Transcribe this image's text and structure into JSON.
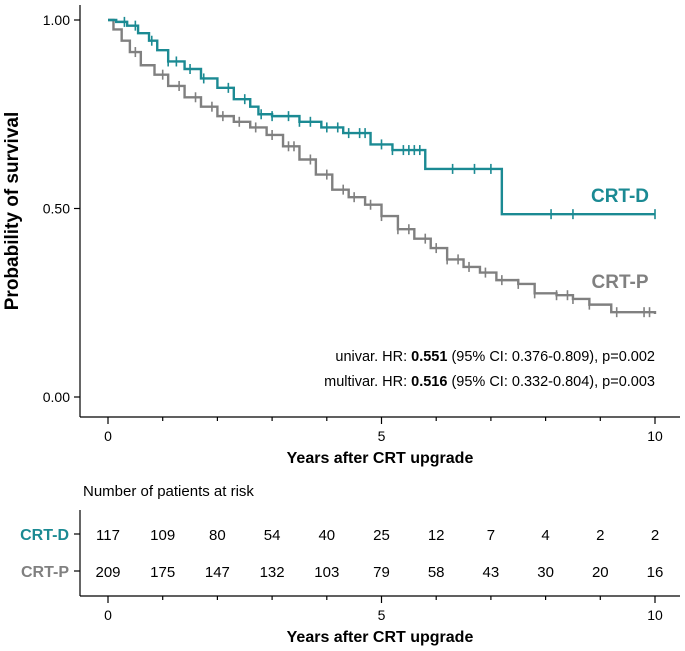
{
  "chart_data": {
    "type": "line",
    "subtype": "kaplan-meier",
    "title": "",
    "xlabel": "Years after CRT upgrade",
    "ylabel": "Probability of survival",
    "xlim": [
      0,
      10
    ],
    "ylim": [
      0,
      1
    ],
    "xticks": [
      0,
      5,
      10
    ],
    "xtick_labels": [
      "0",
      "5",
      "10"
    ],
    "yticks": [
      0,
      0.5,
      1
    ],
    "ytick_labels": [
      "0.00",
      "0.50",
      "1.00"
    ],
    "series": [
      {
        "name": "CRT-D",
        "color": "#1b8a93",
        "x": [
          0,
          0.15,
          0.35,
          0.55,
          0.75,
          0.9,
          1.1,
          1.4,
          1.7,
          2.0,
          2.3,
          2.6,
          2.75,
          3.0,
          3.5,
          3.9,
          4.3,
          4.8,
          5.2,
          5.8,
          7.2,
          10
        ],
        "y": [
          1.0,
          0.995,
          0.985,
          0.965,
          0.945,
          0.92,
          0.89,
          0.87,
          0.845,
          0.82,
          0.79,
          0.77,
          0.75,
          0.745,
          0.73,
          0.715,
          0.7,
          0.67,
          0.655,
          0.605,
          0.485,
          0.485
        ],
        "censor_x": [
          0.3,
          0.5,
          0.8,
          1.1,
          1.25,
          1.5,
          1.75,
          2.2,
          2.5,
          2.8,
          3.0,
          3.3,
          3.5,
          3.7,
          4.0,
          4.2,
          4.4,
          4.6,
          4.7,
          5.0,
          5.2,
          5.4,
          5.5,
          5.6,
          5.7,
          6.3,
          6.7,
          7.0,
          8.1,
          8.5,
          10.0
        ]
      },
      {
        "name": "CRT-P",
        "color": "#808080",
        "x": [
          0,
          0.1,
          0.25,
          0.4,
          0.6,
          0.85,
          1.1,
          1.4,
          1.7,
          2.0,
          2.3,
          2.6,
          2.9,
          3.2,
          3.5,
          3.8,
          4.1,
          4.4,
          4.7,
          5.0,
          5.3,
          5.6,
          5.9,
          6.2,
          6.5,
          6.8,
          7.1,
          7.5,
          7.8,
          8.2,
          8.5,
          8.8,
          9.2,
          10
        ],
        "y": [
          1.0,
          0.975,
          0.945,
          0.915,
          0.88,
          0.855,
          0.825,
          0.795,
          0.77,
          0.745,
          0.73,
          0.715,
          0.695,
          0.665,
          0.63,
          0.59,
          0.55,
          0.53,
          0.51,
          0.48,
          0.445,
          0.42,
          0.395,
          0.365,
          0.345,
          0.33,
          0.31,
          0.3,
          0.275,
          0.27,
          0.26,
          0.245,
          0.225,
          0.22
        ],
        "censor_x": [
          0.5,
          1.0,
          1.3,
          1.6,
          1.9,
          2.1,
          2.4,
          2.7,
          3.0,
          3.3,
          3.4,
          3.7,
          4.0,
          4.3,
          4.5,
          4.8,
          5.0,
          5.3,
          5.5,
          5.8,
          6.0,
          6.2,
          6.4,
          6.6,
          6.9,
          7.2,
          7.5,
          7.8,
          8.2,
          8.4,
          8.5,
          8.8,
          9.3,
          9.8,
          9.9
        ],
        "end_label": "CRT-P"
      }
    ],
    "annotations": [
      {
        "prefix": "univar. HR: ",
        "hr": "0.551",
        "suffix": " (95% CI: 0.376-0.809), p=0.002"
      },
      {
        "prefix": "multivar. HR: ",
        "hr": "0.516",
        "suffix": " (95% CI: 0.332-0.804), p=0.003"
      }
    ],
    "risk_table": {
      "title": "Number of patients at risk",
      "xlabel": "Years after CRT upgrade",
      "times": [
        0,
        1,
        2,
        3,
        4,
        5,
        6,
        7,
        8,
        9,
        10
      ],
      "rows": [
        {
          "name": "CRT-D",
          "color": "#1b8a93",
          "values": [
            117,
            109,
            80,
            54,
            40,
            25,
            12,
            7,
            4,
            2,
            2
          ]
        },
        {
          "name": "CRT-P",
          "color": "#808080",
          "values": [
            209,
            175,
            147,
            132,
            103,
            79,
            58,
            43,
            30,
            20,
            16
          ]
        }
      ]
    }
  }
}
